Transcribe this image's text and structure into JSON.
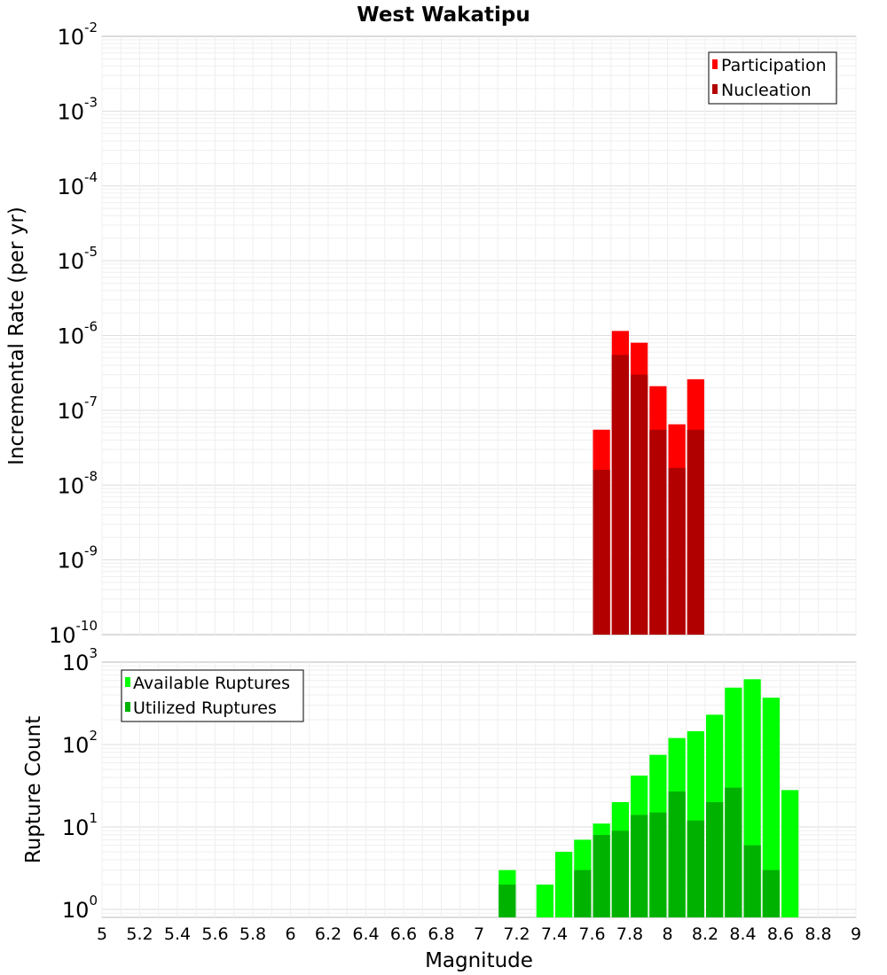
{
  "chart_data": [
    {
      "type": "bar",
      "title": "West Wakatipu",
      "ylabel": "Incremental Rate (per yr)",
      "xlabel": "",
      "yscale": "log",
      "ylim": [
        1e-10,
        0.01
      ],
      "xlim": [
        5,
        9
      ],
      "bar_width": 0.1,
      "grid": true,
      "legend_position": "top-right",
      "y_ticks": [
        {
          "base": "10",
          "exp": "-10",
          "value": 1e-10
        },
        {
          "base": "10",
          "exp": "-9",
          "value": 1e-09
        },
        {
          "base": "10",
          "exp": "-8",
          "value": 1e-08
        },
        {
          "base": "10",
          "exp": "-7",
          "value": 1e-07
        },
        {
          "base": "10",
          "exp": "-6",
          "value": 1e-06
        },
        {
          "base": "10",
          "exp": "-5",
          "value": 1e-05
        },
        {
          "base": "10",
          "exp": "-4",
          "value": 0.0001
        },
        {
          "base": "10",
          "exp": "-3",
          "value": 0.001
        },
        {
          "base": "10",
          "exp": "-2",
          "value": 0.01
        }
      ],
      "series": [
        {
          "name": "Participation",
          "color": "#ff0000",
          "x": [
            7.65,
            7.75,
            7.85,
            7.95,
            8.05,
            8.15
          ],
          "values": [
            5.5e-08,
            1.15e-06,
            8e-07,
            2.1e-07,
            6.5e-08,
            2.6e-07
          ]
        },
        {
          "name": "Nucleation",
          "color": "#b20000",
          "x": [
            7.65,
            7.75,
            7.85,
            7.95,
            8.05,
            8.15
          ],
          "values": [
            1.6e-08,
            5.5e-07,
            3e-07,
            5.5e-08,
            1.7e-08,
            5.5e-08
          ]
        }
      ]
    },
    {
      "type": "bar",
      "title": "",
      "ylabel": "Rupture Count",
      "xlabel": "Magnitude",
      "yscale": "log",
      "ylim": [
        0.8,
        1000
      ],
      "xlim": [
        5,
        9
      ],
      "bar_width": 0.1,
      "grid": true,
      "legend_position": "top-left",
      "y_ticks": [
        {
          "base": "10",
          "exp": "0",
          "value": 1
        },
        {
          "base": "10",
          "exp": "1",
          "value": 10
        },
        {
          "base": "10",
          "exp": "2",
          "value": 100
        },
        {
          "base": "10",
          "exp": "3",
          "value": 1000
        }
      ],
      "x_ticks": [
        "5",
        "5.2",
        "5.4",
        "5.6",
        "5.8",
        "6",
        "6.2",
        "6.4",
        "6.6",
        "6.8",
        "7",
        "7.2",
        "7.4",
        "7.6",
        "7.8",
        "8",
        "8.2",
        "8.4",
        "8.6",
        "8.8",
        "9"
      ],
      "series": [
        {
          "name": "Available Ruptures",
          "color": "#00ff00",
          "x": [
            7.15,
            7.35,
            7.45,
            7.55,
            7.65,
            7.75,
            7.85,
            7.95,
            8.05,
            8.15,
            8.25,
            8.35,
            8.45,
            8.55,
            8.65
          ],
          "values": [
            3,
            2,
            5,
            7,
            11,
            20,
            42,
            75,
            120,
            145,
            230,
            490,
            620,
            370,
            28
          ]
        },
        {
          "name": "Utilized Ruptures",
          "color": "#00b200",
          "x": [
            7.15,
            7.55,
            7.65,
            7.75,
            7.85,
            7.95,
            8.05,
            8.15,
            8.25,
            8.35,
            8.45,
            8.55
          ],
          "values": [
            2,
            3,
            8,
            9,
            14,
            15,
            27,
            12,
            20,
            30,
            6,
            3
          ]
        }
      ]
    }
  ]
}
